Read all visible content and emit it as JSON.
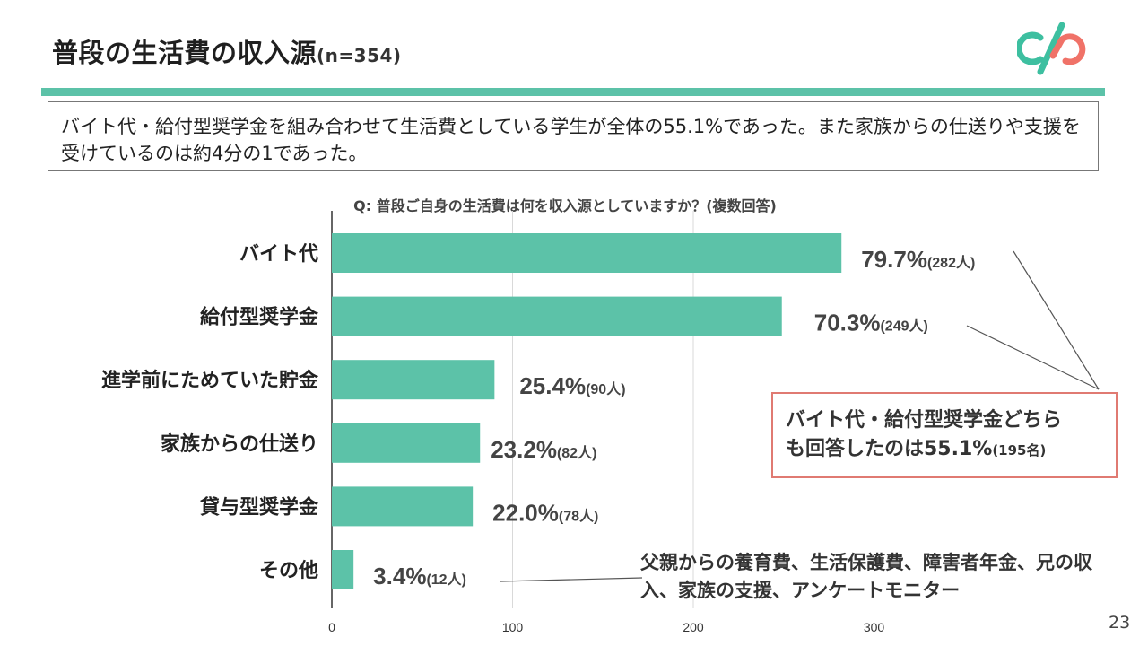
{
  "title": {
    "main": "普段の生活費の収入源",
    "n": "(n=354)"
  },
  "summary": "バイト代・給付型奨学金を組み合わせて生活費としている学生が全体の55.1%であった。また家族からの仕送りや支援を受けているのは約4分の1であった。",
  "question": "Q: 普段ご自身の生活費は何を収入源としていますか？(複数回答)",
  "callout": {
    "line1": "バイト代・給付型奨学金どちら",
    "line2": "も回答したのは55.1%",
    "line2_small": "(195名)"
  },
  "other_note": "父親からの養育費、生活保護費、障害者年金、兄の収入、家族の支援、アンケートモニター",
  "page_number": "23",
  "colors": {
    "bar": "#5cc2a8",
    "accent_rule": "#5cc2a8",
    "callout_border": "#e07a72",
    "logo_teal": "#3dbfa0",
    "logo_coral": "#f07268"
  },
  "chart_data": {
    "type": "bar",
    "orientation": "horizontal",
    "categories": [
      "バイト代",
      "給付型奨学金",
      "進学前にためていた貯金",
      "家族からの仕送り",
      "貸与型奨学金",
      "その他"
    ],
    "values": [
      282,
      249,
      90,
      82,
      78,
      12
    ],
    "percent_labels": [
      "79.7%",
      "70.3%",
      "25.4%",
      "23.2%",
      "22.0%",
      "3.4%"
    ],
    "count_labels": [
      "(282人)",
      "(249人)",
      "(90人)",
      "(82人)",
      "(78人)",
      "(12人)"
    ],
    "xlim": [
      0,
      300
    ],
    "xticks": [
      0,
      100,
      200,
      300
    ],
    "grid": true
  }
}
